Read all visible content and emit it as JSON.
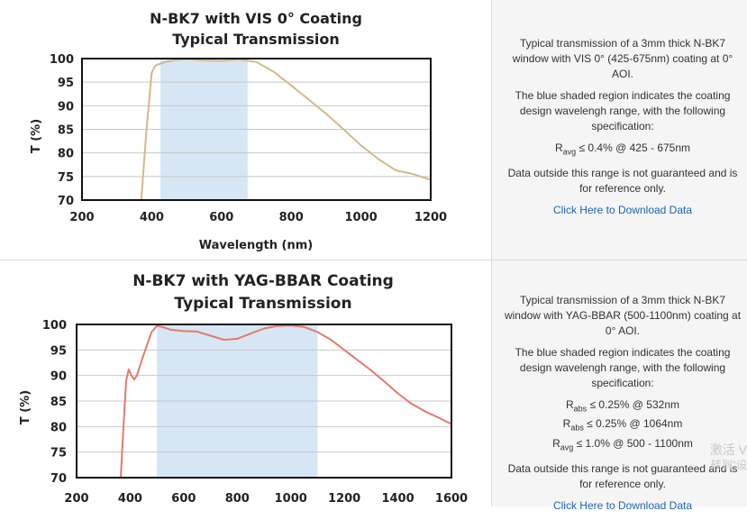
{
  "chart_data": [
    {
      "type": "line",
      "title": "N-BK7 with VIS 0° Coating",
      "subtitle": "Typical Transmission",
      "xlabel": "Wavelength (nm)",
      "ylabel": "T (%)",
      "xlim": [
        200,
        1200
      ],
      "ylim": [
        70,
        100
      ],
      "x_ticks": [
        "200",
        "400",
        "600",
        "800",
        "1000",
        "1200"
      ],
      "y_ticks": [
        "100",
        "95",
        "90",
        "85",
        "80",
        "75",
        "70"
      ],
      "shaded_range": [
        425,
        675
      ],
      "grid": "horizontal",
      "colors": {
        "line": "#d4b98a",
        "shade": "#d6e6f5"
      },
      "series": [
        {
          "x": [
            370,
            385,
            400,
            410,
            420,
            440,
            470,
            500,
            550,
            600,
            650,
            700,
            750,
            800,
            850,
            900,
            950,
            1000,
            1050,
            1100,
            1150,
            1200
          ],
          "values": [
            70,
            85,
            97,
            98.5,
            98.8,
            99.3,
            99.7,
            99.9,
            99.6,
            99.5,
            99.8,
            99.3,
            97.2,
            94.3,
            91.3,
            88.3,
            85.0,
            81.6,
            78.7,
            76.3,
            75.5,
            74.3
          ]
        }
      ]
    },
    {
      "type": "line",
      "title": "N-BK7 with YAG-BBAR Coating",
      "subtitle": "Typical Transmission",
      "xlabel": "",
      "ylabel": "T (%)",
      "xlim": [
        200,
        1600
      ],
      "ylim": [
        70,
        100
      ],
      "x_ticks": [
        "200",
        "400",
        "600",
        "800",
        "1000",
        "1200",
        "1400",
        "1600"
      ],
      "y_ticks": [
        "100",
        "95",
        "90",
        "85",
        "80",
        "75",
        "70"
      ],
      "shaded_range": [
        500,
        1100
      ],
      "grid": "horizontal",
      "colors": {
        "line": "#e27b6b",
        "shade": "#d6e6f5"
      },
      "series": [
        {
          "x": [
            365,
            375,
            385,
            395,
            405,
            415,
            425,
            450,
            480,
            500,
            520,
            550,
            600,
            650,
            700,
            750,
            800,
            850,
            900,
            950,
            1000,
            1050,
            1100,
            1150,
            1200,
            1250,
            1300,
            1350,
            1400,
            1450,
            1500,
            1550,
            1600
          ],
          "values": [
            70,
            80,
            89,
            91.2,
            90,
            89.2,
            90,
            94,
            98.5,
            99.7,
            99.5,
            99.0,
            98.7,
            98.6,
            97.8,
            97.0,
            97.2,
            98.2,
            99.2,
            99.7,
            99.8,
            99.5,
            98.5,
            97.0,
            95.0,
            93.0,
            91.0,
            88.8,
            86.5,
            84.5,
            83.0,
            81.8,
            80.5
          ]
        }
      ]
    }
  ],
  "panels": [
    {
      "desc_line1": "Typical transmission of a 3mm thick N-BK7 window with VIS 0° (425-675nm) coating at 0° AOI.",
      "desc_line2": "The blue shaded region indicates the coating design wavelengh range, with the following specification:",
      "spec1_main": "R",
      "spec1_sub": "avg",
      "spec1_rest": " ≤ 0.4% @ 425 - 675nm",
      "desc_line3": "Data outside this range is not guaranteed and is for reference only.",
      "link": "Click Here to Download Data"
    },
    {
      "desc_line1": "Typical transmission of a 3mm thick N-BK7 window with YAG-BBAR (500-1100nm) coating at 0° AOI.",
      "desc_line2": "The blue shaded region indicates the coating design wavelengh range, with the following specification:",
      "spec1_main": "R",
      "spec1_sub": "abs",
      "spec1_rest": " ≤ 0.25% @ 532nm",
      "spec2_main": "R",
      "spec2_sub": "abs",
      "spec2_rest": " ≤ 0.25% @ 1064nm",
      "spec3_main": "R",
      "spec3_sub": "avg",
      "spec3_rest": " ≤ 1.0% @ 500 - 1100nm",
      "desc_line3": "Data outside this range is not guaranteed and is for reference only.",
      "link": "Click Here to Download Data"
    }
  ],
  "watermark": {
    "line1": "激活 V",
    "line2": "转到\"设"
  }
}
